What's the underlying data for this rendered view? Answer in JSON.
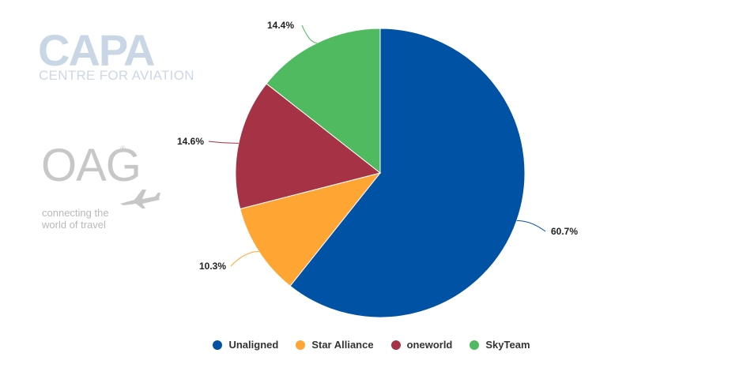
{
  "watermarks": {
    "capa_word": "CAPA",
    "capa_sub": "CENTRE FOR AVIATION",
    "oag_word": "OAG",
    "oag_reg": "®",
    "oag_tag_line1": "connecting the",
    "oag_tag_line2": "world of travel"
  },
  "chart_data": {
    "type": "pie",
    "start_angle_deg": 0,
    "direction": "clockwise",
    "legend_position": "bottom-center",
    "slices": [
      {
        "label": "Unaligned",
        "value": 60.7,
        "display": "60.7%",
        "color": "#0052a5"
      },
      {
        "label": "Star Alliance",
        "value": 10.3,
        "display": "10.3%",
        "color": "#ffa534"
      },
      {
        "label": "oneworld",
        "value": 14.6,
        "display": "14.6%",
        "color": "#a53245"
      },
      {
        "label": "SkyTeam",
        "value": 14.4,
        "display": "14.4%",
        "color": "#4fba5f"
      }
    ]
  }
}
